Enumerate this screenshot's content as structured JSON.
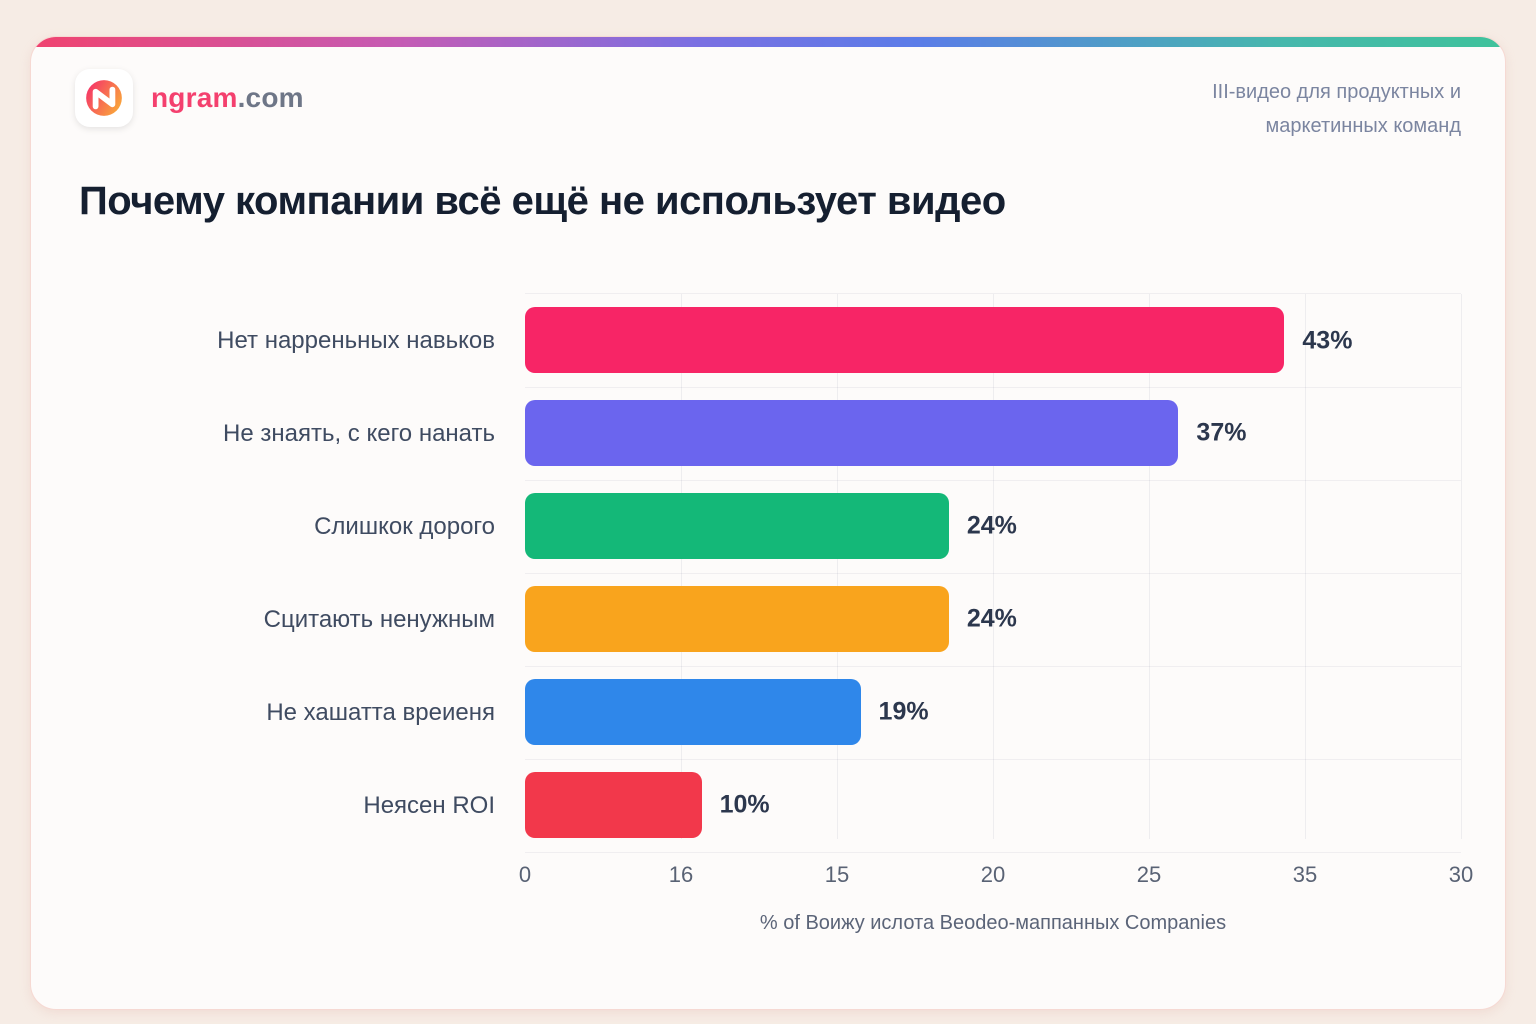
{
  "page": {
    "background_color": "#f6ece5",
    "card_background": "#fdfbfa",
    "top_gradient_colors": [
      "#f0436f",
      "#7b6fe2",
      "#3fc29b"
    ]
  },
  "header": {
    "logo": {
      "brand": "ngram",
      "domain": ".com",
      "brand_color": "#f4406e",
      "domain_color": "#6e7687",
      "icon_gradient": [
        "#f5286d",
        "#f9a13d"
      ]
    },
    "tagline_line1": "III-видео для продуктных и",
    "tagline_line2": "маркетинных команд"
  },
  "title": "Почему компании всё ещё не использует видео",
  "chart_data": {
    "type": "bar",
    "orientation": "horizontal",
    "title": "Почему компании всё ещё не использует видео",
    "categories": [
      "Нет нарреньных навьков",
      "Не знаять, с кего нанать",
      "Слишкок дорого",
      "Сцитають ненужным",
      "Не хашатта вреиеня",
      "Неясен ROI"
    ],
    "values": [
      43,
      37,
      24,
      24,
      19,
      10
    ],
    "value_labels": [
      "43%",
      "37%",
      "24%",
      "24%",
      "19%",
      "10%"
    ],
    "bar_colors": [
      "#f72566",
      "#6b65ee",
      "#14b878",
      "#f9a41d",
      "#2f87ea",
      "#f2384b"
    ],
    "x_ticks": [
      "0",
      "16",
      "15",
      "20",
      "25",
      "35",
      "30"
    ],
    "xlabel": "% of Воижу ислота Beodeo-маппанных Companies",
    "bar_display_max": 53,
    "grid": true,
    "legend": false,
    "value_text_color": "#2c374d",
    "label_text_color": "#3f4b61",
    "tick_text_color": "#596274"
  }
}
